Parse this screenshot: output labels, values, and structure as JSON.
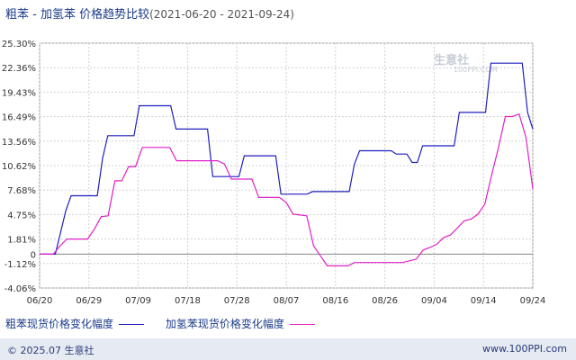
{
  "title": {
    "main": "粗苯 - 加氢苯 价格趋势比较",
    "date_range": "(2021-06-20 - 2021-09-24)"
  },
  "watermark": {
    "main": "生意社",
    "sub": "100PPI.COM"
  },
  "footer": {
    "left": "© 2025.07 生意社",
    "right": "www.100PPI.com"
  },
  "chart_data": {
    "type": "line",
    "title": "粗苯 - 加氢苯 价格趋势比较",
    "xlabel": "",
    "ylabel": "",
    "ylim": [
      -4.06,
      25.3
    ],
    "x_ticks": [
      "06/20",
      "06/29",
      "07/09",
      "07/18",
      "07/28",
      "08/07",
      "08/16",
      "08/26",
      "09/04",
      "09/14",
      "09/24"
    ],
    "y_ticks": [
      "25.30%",
      "22.36%",
      "19.43%",
      "16.49%",
      "13.56%",
      "10.62%",
      "7.68%",
      "4.75%",
      "1.81%",
      "0",
      "-1.12%",
      "-4.06%"
    ],
    "y_tick_values": [
      25.3,
      22.36,
      19.43,
      16.49,
      13.56,
      10.62,
      7.68,
      4.75,
      1.81,
      0,
      -1.12,
      -4.06
    ],
    "grid": true,
    "legend_position": "bottom",
    "series": [
      {
        "name": "粗苯现货价格变化幅度",
        "color": "#1f1fbf",
        "points": [
          [
            0,
            0
          ],
          [
            3,
            0
          ],
          [
            5,
            5.2
          ],
          [
            6,
            7.0
          ],
          [
            10,
            7.0
          ],
          [
            11,
            7.0
          ],
          [
            12,
            11.5
          ],
          [
            13,
            14.2
          ],
          [
            18,
            14.2
          ],
          [
            19,
            17.8
          ],
          [
            25,
            17.8
          ],
          [
            26,
            15.0
          ],
          [
            32,
            15.0
          ],
          [
            33,
            9.3
          ],
          [
            38,
            9.3
          ],
          [
            39,
            11.8
          ],
          [
            45,
            11.8
          ],
          [
            46,
            7.2
          ],
          [
            51,
            7.2
          ],
          [
            52,
            7.5
          ],
          [
            59,
            7.5
          ],
          [
            60,
            10.8
          ],
          [
            61,
            12.4
          ],
          [
            67,
            12.4
          ],
          [
            68,
            12.0
          ],
          [
            70,
            12.0
          ],
          [
            71,
            11.0
          ],
          [
            72,
            11.0
          ],
          [
            73,
            13.0
          ],
          [
            79,
            13.0
          ],
          [
            80,
            17.0
          ],
          [
            85,
            17.0
          ],
          [
            86,
            22.9
          ],
          [
            92,
            22.9
          ],
          [
            93,
            17.0
          ],
          [
            94,
            15.0
          ]
        ]
      },
      {
        "name": "加氢苯现货价格变化幅度",
        "color": "#e020c8",
        "points": [
          [
            0,
            0
          ],
          [
            2,
            0
          ],
          [
            3,
            1.0
          ],
          [
            4,
            1.81
          ],
          [
            7,
            1.81
          ],
          [
            8,
            3.0
          ],
          [
            9,
            4.5
          ],
          [
            10,
            4.6
          ],
          [
            11,
            8.8
          ],
          [
            12,
            8.8
          ],
          [
            13,
            10.5
          ],
          [
            14,
            10.5
          ],
          [
            15,
            12.8
          ],
          [
            19,
            12.8
          ],
          [
            20,
            11.2
          ],
          [
            26,
            11.2
          ],
          [
            27,
            10.8
          ],
          [
            28,
            9.0
          ],
          [
            31,
            9.0
          ],
          [
            32,
            6.8
          ],
          [
            35,
            6.8
          ],
          [
            36,
            6.2
          ],
          [
            37,
            4.8
          ],
          [
            39,
            4.6
          ],
          [
            40,
            1.0
          ],
          [
            41,
            -0.2
          ],
          [
            42,
            -1.4
          ],
          [
            45,
            -1.4
          ],
          [
            46,
            -1.0
          ],
          [
            51,
            -1.0
          ],
          [
            53,
            -1.0
          ],
          [
            55,
            -0.6
          ],
          [
            56,
            0.5
          ],
          [
            57,
            0.8
          ],
          [
            58,
            1.2
          ],
          [
            59,
            2.0
          ],
          [
            60,
            2.3
          ],
          [
            62,
            4.0
          ],
          [
            63,
            4.2
          ],
          [
            64,
            4.8
          ],
          [
            65,
            6.0
          ],
          [
            66,
            9.5
          ],
          [
            67,
            12.8
          ],
          [
            68,
            16.5
          ],
          [
            69,
            16.5
          ],
          [
            70,
            16.8
          ],
          [
            71,
            14.0
          ],
          [
            72,
            7.8
          ]
        ],
        "x_scale": 1.3055
      }
    ]
  }
}
